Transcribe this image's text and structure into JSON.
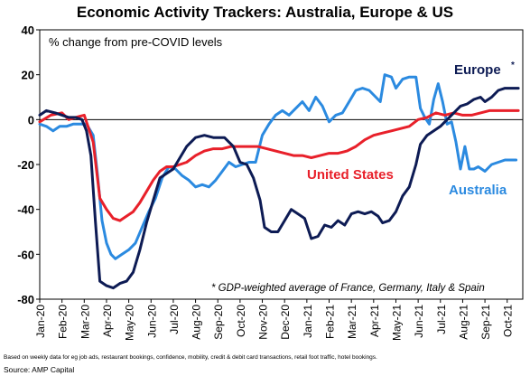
{
  "chart_data": {
    "type": "line",
    "title": "Economic Activity Trackers: Australia, Europe & US",
    "subtitle": "% change from pre-COVID levels",
    "ylim": [
      -80,
      40
    ],
    "yticks": [
      40,
      20,
      0,
      -20,
      -40,
      -60,
      -80
    ],
    "xlim": [
      0,
      21.7
    ],
    "x_tick_labels": [
      "Jan-20",
      "Feb-20",
      "Mar-20",
      "Apr-20",
      "May-20",
      "Jun-20",
      "Jul-20",
      "Aug-20",
      "Sep-20",
      "Oct-20",
      "Nov-20",
      "Dec-20",
      "Jan-21",
      "Feb-21",
      "Mar-21",
      "Apr-21",
      "May-21",
      "Jun-21",
      "Jul-21",
      "Aug-21",
      "Sep-21",
      "Oct-21"
    ],
    "annotation": "* GDP-weighted average of France, Germany, Italy & Spain",
    "series": [
      {
        "name": "Europe*",
        "color": "#0d1b54",
        "points": [
          [
            0,
            2
          ],
          [
            0.3,
            4
          ],
          [
            0.7,
            3
          ],
          [
            1.0,
            2
          ],
          [
            1.3,
            1
          ],
          [
            1.6,
            1
          ],
          [
            1.9,
            0
          ],
          [
            2.1,
            -5
          ],
          [
            2.3,
            -16
          ],
          [
            2.5,
            -45
          ],
          [
            2.7,
            -72
          ],
          [
            3.0,
            -74
          ],
          [
            3.3,
            -75
          ],
          [
            3.6,
            -73
          ],
          [
            3.9,
            -72
          ],
          [
            4.2,
            -68
          ],
          [
            4.5,
            -58
          ],
          [
            4.8,
            -46
          ],
          [
            5.1,
            -36
          ],
          [
            5.4,
            -26
          ],
          [
            5.7,
            -24
          ],
          [
            6.0,
            -22
          ],
          [
            6.3,
            -17
          ],
          [
            6.6,
            -12
          ],
          [
            7.0,
            -8
          ],
          [
            7.4,
            -7
          ],
          [
            7.8,
            -8
          ],
          [
            8.3,
            -8
          ],
          [
            8.7,
            -12
          ],
          [
            9.0,
            -19
          ],
          [
            9.3,
            -20
          ],
          [
            9.6,
            -26
          ],
          [
            9.9,
            -36
          ],
          [
            10.1,
            -48
          ],
          [
            10.4,
            -50
          ],
          [
            10.7,
            -50
          ],
          [
            11.0,
            -45
          ],
          [
            11.3,
            -40
          ],
          [
            11.6,
            -42
          ],
          [
            11.9,
            -44
          ],
          [
            12.2,
            -53
          ],
          [
            12.5,
            -52
          ],
          [
            12.8,
            -47
          ],
          [
            13.1,
            -48
          ],
          [
            13.4,
            -45
          ],
          [
            13.7,
            -47
          ],
          [
            14.0,
            -42
          ],
          [
            14.3,
            -41
          ],
          [
            14.6,
            -42
          ],
          [
            14.9,
            -41
          ],
          [
            15.2,
            -43
          ],
          [
            15.4,
            -46
          ],
          [
            15.7,
            -45
          ],
          [
            16.0,
            -41
          ],
          [
            16.3,
            -34
          ],
          [
            16.6,
            -30
          ],
          [
            16.9,
            -20
          ],
          [
            17.1,
            -11
          ],
          [
            17.4,
            -7
          ],
          [
            17.7,
            -5
          ],
          [
            18.0,
            -3
          ],
          [
            18.3,
            0
          ],
          [
            18.6,
            3
          ],
          [
            18.9,
            6
          ],
          [
            19.2,
            7
          ],
          [
            19.5,
            9
          ],
          [
            19.8,
            10
          ],
          [
            20.0,
            8
          ],
          [
            20.3,
            10
          ],
          [
            20.6,
            13
          ],
          [
            20.9,
            14
          ],
          [
            21.2,
            14
          ],
          [
            21.5,
            14
          ]
        ]
      },
      {
        "name": "United States",
        "color": "#e8202a",
        "points": [
          [
            0,
            -1
          ],
          [
            0.5,
            2
          ],
          [
            1.0,
            3
          ],
          [
            1.3,
            0
          ],
          [
            1.6,
            1
          ],
          [
            2.0,
            2
          ],
          [
            2.4,
            -10
          ],
          [
            2.7,
            -35
          ],
          [
            3.0,
            -40
          ],
          [
            3.3,
            -44
          ],
          [
            3.6,
            -45
          ],
          [
            3.9,
            -43
          ],
          [
            4.2,
            -41
          ],
          [
            4.5,
            -37
          ],
          [
            4.8,
            -32
          ],
          [
            5.1,
            -27
          ],
          [
            5.4,
            -23
          ],
          [
            5.7,
            -21
          ],
          [
            6.0,
            -21
          ],
          [
            6.3,
            -20
          ],
          [
            6.6,
            -19
          ],
          [
            7.0,
            -16
          ],
          [
            7.4,
            -14
          ],
          [
            7.8,
            -13
          ],
          [
            8.2,
            -13
          ],
          [
            8.6,
            -12
          ],
          [
            9.0,
            -12
          ],
          [
            9.4,
            -12
          ],
          [
            9.8,
            -12
          ],
          [
            10.2,
            -13
          ],
          [
            10.6,
            -14
          ],
          [
            11.0,
            -15
          ],
          [
            11.4,
            -16
          ],
          [
            11.8,
            -16
          ],
          [
            12.2,
            -17
          ],
          [
            12.6,
            -16
          ],
          [
            13.0,
            -15
          ],
          [
            13.4,
            -15
          ],
          [
            13.8,
            -14
          ],
          [
            14.2,
            -12
          ],
          [
            14.6,
            -9
          ],
          [
            15.0,
            -7
          ],
          [
            15.4,
            -6
          ],
          [
            15.8,
            -5
          ],
          [
            16.2,
            -4
          ],
          [
            16.6,
            -3
          ],
          [
            17.0,
            0
          ],
          [
            17.4,
            1
          ],
          [
            17.8,
            3
          ],
          [
            18.2,
            2
          ],
          [
            18.6,
            3
          ],
          [
            19.0,
            2
          ],
          [
            19.4,
            2
          ],
          [
            19.8,
            3
          ],
          [
            20.2,
            4
          ],
          [
            20.6,
            4
          ],
          [
            21.0,
            4
          ],
          [
            21.5,
            4
          ]
        ]
      },
      {
        "name": "Australia",
        "color": "#2b8ae0",
        "points": [
          [
            0,
            -2
          ],
          [
            0.3,
            -3
          ],
          [
            0.6,
            -5
          ],
          [
            0.9,
            -3
          ],
          [
            1.2,
            -3
          ],
          [
            1.5,
            -2
          ],
          [
            1.8,
            -2
          ],
          [
            2.1,
            -2
          ],
          [
            2.4,
            -7
          ],
          [
            2.6,
            -25
          ],
          [
            2.8,
            -45
          ],
          [
            3.0,
            -55
          ],
          [
            3.2,
            -60
          ],
          [
            3.4,
            -62
          ],
          [
            3.7,
            -60
          ],
          [
            4.0,
            -58
          ],
          [
            4.3,
            -55
          ],
          [
            4.6,
            -48
          ],
          [
            4.9,
            -41
          ],
          [
            5.2,
            -35
          ],
          [
            5.5,
            -26
          ],
          [
            5.8,
            -21
          ],
          [
            6.1,
            -22
          ],
          [
            6.4,
            -25
          ],
          [
            6.7,
            -27
          ],
          [
            7.0,
            -30
          ],
          [
            7.3,
            -29
          ],
          [
            7.6,
            -30
          ],
          [
            7.9,
            -27
          ],
          [
            8.2,
            -23
          ],
          [
            8.5,
            -19
          ],
          [
            8.8,
            -21
          ],
          [
            9.1,
            -20
          ],
          [
            9.4,
            -19
          ],
          [
            9.7,
            -19
          ],
          [
            10.0,
            -7
          ],
          [
            10.3,
            -2
          ],
          [
            10.6,
            2
          ],
          [
            10.9,
            4
          ],
          [
            11.2,
            2
          ],
          [
            11.5,
            5
          ],
          [
            11.8,
            8
          ],
          [
            12.1,
            4
          ],
          [
            12.4,
            10
          ],
          [
            12.7,
            6
          ],
          [
            13.0,
            -1
          ],
          [
            13.3,
            2
          ],
          [
            13.6,
            3
          ],
          [
            13.9,
            8
          ],
          [
            14.2,
            13
          ],
          [
            14.5,
            14
          ],
          [
            14.8,
            13
          ],
          [
            15.1,
            10
          ],
          [
            15.3,
            8
          ],
          [
            15.5,
            20
          ],
          [
            15.8,
            19
          ],
          [
            16.0,
            14
          ],
          [
            16.3,
            18
          ],
          [
            16.6,
            19
          ],
          [
            16.9,
            19
          ],
          [
            17.1,
            5
          ],
          [
            17.3,
            1
          ],
          [
            17.5,
            -2
          ],
          [
            17.7,
            9
          ],
          [
            17.9,
            16
          ],
          [
            18.1,
            8
          ],
          [
            18.3,
            -2
          ],
          [
            18.5,
            -1
          ],
          [
            18.7,
            -10
          ],
          [
            18.9,
            -22
          ],
          [
            19.1,
            -12
          ],
          [
            19.3,
            -22
          ],
          [
            19.5,
            -22
          ],
          [
            19.7,
            -21
          ],
          [
            20.0,
            -23
          ],
          [
            20.3,
            -20
          ],
          [
            20.6,
            -19
          ],
          [
            20.9,
            -18
          ],
          [
            21.2,
            -18
          ],
          [
            21.4,
            -18
          ]
        ]
      }
    ]
  },
  "footnote": "Based on weekly data for eg job ads, restaurant bookings, confidence, mobility, credit & debit card transactions, retail foot traffic, hotel bookings.",
  "source": "Source: AMP Capital"
}
